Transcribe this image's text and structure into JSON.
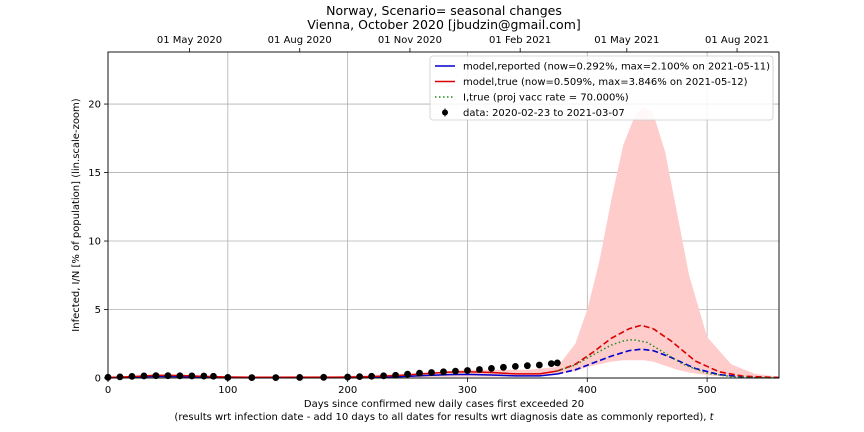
{
  "chart_data": {
    "type": "line",
    "title": "Norway, Scenario= seasonal changes",
    "subtitle": "Vienna, October 2020 [jbudzin@gmail.com]",
    "xlabel": "Days since confirmed new daily cases first exceeded 20",
    "xlabel_note_prefix": "(results wrt infection date - add 10 days to all dates for results wrt diagnosis date as commonly reported), ",
    "xlabel_note_var": "t",
    "ylabel": "Infected, I/N [% of population] (lin.scale-zoom)",
    "xlim": [
      0,
      560
    ],
    "ylim": [
      0,
      23.8
    ],
    "x_ticks": [
      0,
      100,
      200,
      300,
      400,
      500
    ],
    "y_ticks": [
      0,
      5,
      10,
      15,
      20
    ],
    "top_axis_ticks": [
      {
        "x": 68,
        "label": "01 May 2020"
      },
      {
        "x": 160,
        "label": "01 Aug 2020"
      },
      {
        "x": 252,
        "label": "01 Nov 2020"
      },
      {
        "x": 344,
        "label": "01 Feb 2021"
      },
      {
        "x": 433,
        "label": "01 May 2021"
      },
      {
        "x": 525,
        "label": "01 Aug 2021"
      }
    ],
    "grid": true,
    "legend_position": "top-right",
    "colors": {
      "reported": "#0000cc",
      "true": "#dd0000",
      "vacc": "#228b22",
      "band": "#ffcccc",
      "data": "#000000"
    },
    "series": [
      {
        "name": "model,reported (now=0.292%, max=2.100% on 2021-05-11)",
        "style": "solid-then-dashed",
        "split_x": 375,
        "x": [
          0,
          20,
          40,
          60,
          80,
          100,
          130,
          160,
          190,
          220,
          245,
          265,
          285,
          300,
          320,
          340,
          360,
          375,
          390,
          405,
          420,
          435,
          445,
          455,
          470,
          490,
          510,
          530,
          560
        ],
        "y": [
          0.02,
          0.06,
          0.12,
          0.1,
          0.07,
          0.04,
          0.03,
          0.03,
          0.03,
          0.05,
          0.1,
          0.18,
          0.25,
          0.26,
          0.22,
          0.15,
          0.15,
          0.29,
          0.6,
          1.1,
          1.6,
          2.0,
          2.1,
          2.0,
          1.5,
          0.7,
          0.25,
          0.08,
          0.02
        ]
      },
      {
        "name": "model,true (now=0.509%, max=3.846% on 2021-05-12)",
        "style": "solid-then-dashed",
        "split_x": 375,
        "x": [
          0,
          20,
          40,
          60,
          80,
          100,
          130,
          160,
          190,
          220,
          245,
          265,
          285,
          300,
          320,
          340,
          360,
          375,
          390,
          405,
          420,
          435,
          445,
          455,
          470,
          490,
          510,
          530,
          560
        ],
        "y": [
          0.04,
          0.1,
          0.2,
          0.18,
          0.12,
          0.07,
          0.05,
          0.05,
          0.06,
          0.1,
          0.2,
          0.32,
          0.43,
          0.46,
          0.4,
          0.3,
          0.3,
          0.51,
          1.0,
          1.9,
          2.9,
          3.6,
          3.85,
          3.6,
          2.7,
          1.25,
          0.45,
          0.13,
          0.03
        ]
      },
      {
        "name": "I,true (proj vacc rate = 70.000%)",
        "style": "dotted",
        "x": [
          375,
          390,
          405,
          420,
          430,
          438,
          450,
          465,
          480,
          500,
          520,
          540,
          560
        ],
        "y": [
          0.51,
          0.95,
          1.7,
          2.4,
          2.7,
          2.8,
          2.6,
          1.8,
          1.0,
          0.35,
          0.1,
          0.03,
          0.01
        ]
      }
    ],
    "band": {
      "x": [
        0,
        100,
        200,
        250,
        300,
        350,
        375,
        390,
        400,
        410,
        420,
        430,
        440,
        447,
        455,
        465,
        475,
        485,
        500,
        520,
        540,
        560
      ],
      "lower": [
        0.0,
        0.0,
        0.0,
        0.05,
        0.1,
        0.1,
        0.3,
        0.5,
        0.8,
        1.0,
        1.2,
        1.3,
        1.3,
        1.3,
        1.2,
        0.9,
        0.6,
        0.4,
        0.2,
        0.08,
        0.03,
        0.01
      ],
      "upper": [
        0.1,
        0.1,
        0.15,
        0.3,
        0.6,
        0.6,
        0.8,
        2.5,
        5.0,
        8.5,
        13.0,
        17.0,
        19.2,
        19.8,
        19.3,
        16.5,
        12.0,
        7.5,
        3.0,
        1.0,
        0.3,
        0.1
      ]
    },
    "data_points": {
      "name": "data: 2020-02-23 to 2021-03-07",
      "x": [
        0,
        10,
        20,
        30,
        40,
        50,
        60,
        70,
        80,
        88,
        100,
        120,
        140,
        160,
        180,
        200,
        210,
        220,
        230,
        240,
        250,
        260,
        270,
        280,
        290,
        300,
        310,
        320,
        330,
        340,
        350,
        360,
        370,
        375
      ],
      "y": [
        0.05,
        0.08,
        0.12,
        0.15,
        0.17,
        0.17,
        0.16,
        0.15,
        0.14,
        0.13,
        0.04,
        0.03,
        0.03,
        0.04,
        0.05,
        0.07,
        0.1,
        0.13,
        0.16,
        0.2,
        0.28,
        0.35,
        0.4,
        0.45,
        0.5,
        0.55,
        0.62,
        0.7,
        0.78,
        0.85,
        0.9,
        0.95,
        1.05,
        1.1
      ]
    }
  }
}
